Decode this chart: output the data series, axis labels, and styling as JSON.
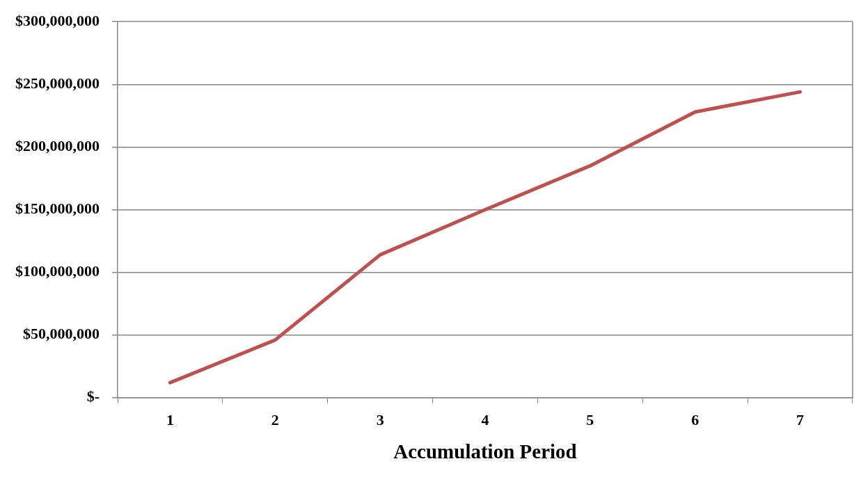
{
  "chart_data": {
    "type": "line",
    "xlabel": "Accumulation Period",
    "categories": [
      "1",
      "2",
      "3",
      "4",
      "5",
      "6",
      "7"
    ],
    "series": [
      {
        "color": "#c0504d",
        "values": [
          12000000,
          46000000,
          114000000,
          150000000,
          185000000,
          228000000,
          244000000
        ]
      }
    ],
    "ylim": [
      0,
      300000000
    ],
    "yticks": [
      {
        "value": 0,
        "label": "$-"
      },
      {
        "value": 50000000,
        "label": "$50,000,000"
      },
      {
        "value": 100000000,
        "label": "$100,000,000"
      },
      {
        "value": 150000000,
        "label": "$150,000,000"
      },
      {
        "value": 200000000,
        "label": "$200,000,000"
      },
      {
        "value": 250000000,
        "label": "$250,000,000"
      },
      {
        "value": 300000000,
        "label": "$300,000,000"
      }
    ],
    "grid": "y",
    "legend": false,
    "marker": "none",
    "line_style": "solid"
  }
}
